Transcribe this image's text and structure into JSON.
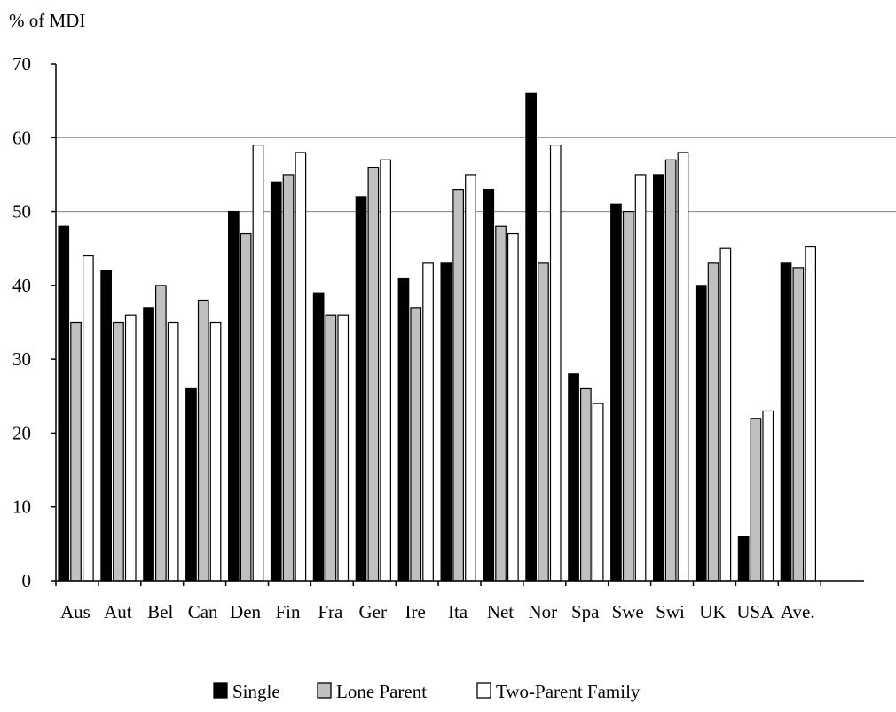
{
  "chart_data": {
    "type": "bar",
    "title": "",
    "xlabel": "",
    "ylabel": "% of MDI",
    "ylim": [
      0,
      70
    ],
    "yticks": [
      0,
      10,
      20,
      30,
      40,
      50,
      60,
      70
    ],
    "gridlines_at": [
      50,
      60
    ],
    "legend_position": "bottom",
    "categories": [
      "Aus",
      "Aut",
      "Bel",
      "Can",
      "Den",
      "Fin",
      "Fra",
      "Ger",
      "Ire",
      "Ita",
      "Net",
      "Nor",
      "Spa",
      "Swe",
      "Swi",
      "UK",
      "USA",
      "Ave."
    ],
    "series": [
      {
        "name": "Single",
        "color": "#000000",
        "values": [
          48,
          42,
          37,
          26,
          50,
          54,
          39,
          52,
          41,
          43,
          53,
          66,
          28,
          51,
          55,
          40,
          6,
          43
        ]
      },
      {
        "name": "Lone Parent",
        "color": "#c0c0c0",
        "values": [
          35,
          35,
          40,
          38,
          47,
          55,
          36,
          56,
          37,
          53,
          48,
          43,
          26,
          50,
          57,
          43,
          22,
          42.4
        ]
      },
      {
        "name": "Two-Parent Family",
        "color": "#ffffff",
        "values": [
          44,
          36,
          35,
          35,
          59,
          58,
          36,
          57,
          43,
          55,
          47,
          59,
          24,
          55,
          58,
          45,
          23,
          45.2
        ]
      }
    ]
  }
}
